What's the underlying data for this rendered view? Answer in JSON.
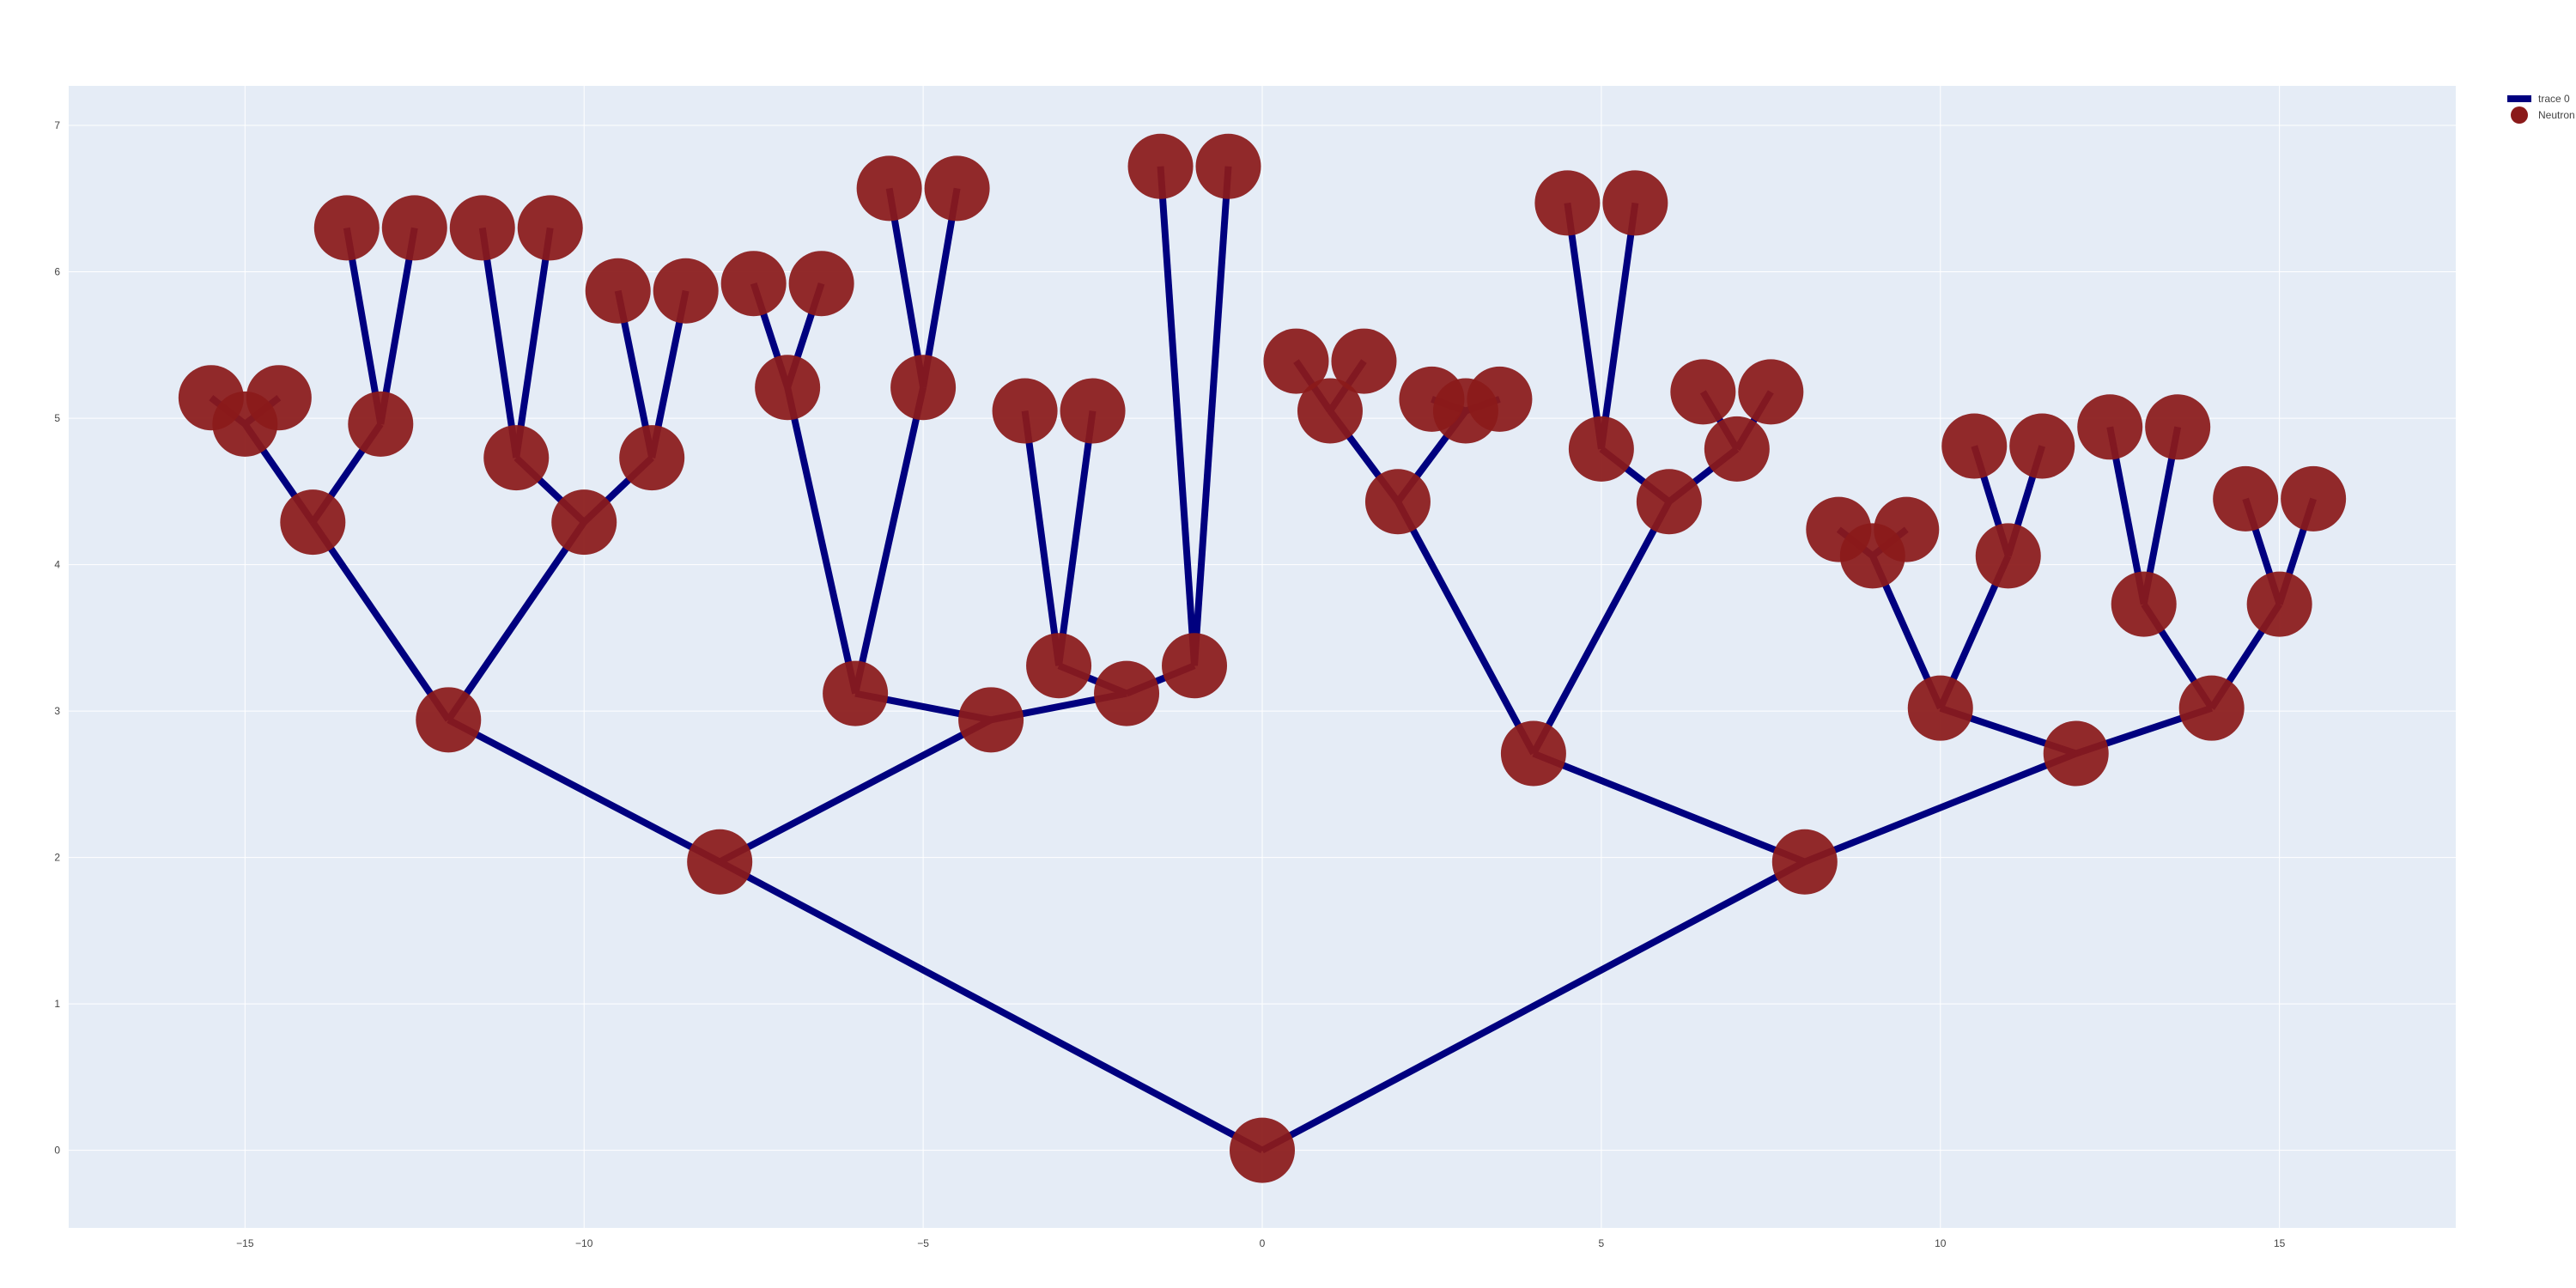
{
  "chart_data": {
    "type": "scatter",
    "title": "",
    "xlabel": "",
    "ylabel": "",
    "xlim": [
      -17.6,
      17.6
    ],
    "ylim": [
      -0.53,
      7.27
    ],
    "x_ticks": [
      -15,
      -10,
      -5,
      0,
      5,
      10,
      15
    ],
    "x_tick_labels": [
      "−15",
      "−10",
      "−5",
      "0",
      "5",
      "10",
      "15"
    ],
    "y_ticks": [
      0,
      1,
      2,
      3,
      4,
      5,
      6,
      7
    ],
    "y_tick_labels": [
      "0",
      "1",
      "2",
      "3",
      "4",
      "5",
      "6",
      "7"
    ],
    "grid": true,
    "legend_position": "top-right",
    "series": [
      {
        "name": "trace 0",
        "mode": "lines",
        "color": "#00007f",
        "segments": [
          [
            [
              0,
              0
            ],
            [
              -8,
              1.97
            ]
          ],
          [
            [
              0,
              0
            ],
            [
              8,
              1.97
            ]
          ],
          [
            [
              -8,
              1.97
            ],
            [
              -12,
              2.94
            ]
          ],
          [
            [
              -8,
              1.97
            ],
            [
              -4,
              2.94
            ]
          ],
          [
            [
              -12,
              2.94
            ],
            [
              -14,
              4.29
            ]
          ],
          [
            [
              -12,
              2.94
            ],
            [
              -10,
              4.29
            ]
          ],
          [
            [
              -14,
              4.29
            ],
            [
              -15,
              4.96
            ]
          ],
          [
            [
              -14,
              4.29
            ],
            [
              -13,
              4.96
            ]
          ],
          [
            [
              -15,
              4.96
            ],
            [
              -15.5,
              5.14
            ]
          ],
          [
            [
              -15,
              4.96
            ],
            [
              -14.5,
              5.14
            ]
          ],
          [
            [
              -13,
              4.96
            ],
            [
              -13.5,
              6.3
            ]
          ],
          [
            [
              -13,
              4.96
            ],
            [
              -12.5,
              6.3
            ]
          ],
          [
            [
              -10,
              4.29
            ],
            [
              -11,
              4.73
            ]
          ],
          [
            [
              -10,
              4.29
            ],
            [
              -9,
              4.73
            ]
          ],
          [
            [
              -11,
              4.73
            ],
            [
              -11.5,
              6.3
            ]
          ],
          [
            [
              -11,
              4.73
            ],
            [
              -10.5,
              6.3
            ]
          ],
          [
            [
              -9,
              4.73
            ],
            [
              -9.5,
              5.87
            ]
          ],
          [
            [
              -9,
              4.73
            ],
            [
              -8.5,
              5.87
            ]
          ],
          [
            [
              -4,
              2.94
            ],
            [
              -6,
              3.12
            ]
          ],
          [
            [
              -4,
              2.94
            ],
            [
              -2,
              3.12
            ]
          ],
          [
            [
              -6,
              3.12
            ],
            [
              -7,
              5.21
            ]
          ],
          [
            [
              -6,
              3.12
            ],
            [
              -5,
              5.21
            ]
          ],
          [
            [
              -7,
              5.21
            ],
            [
              -7.5,
              5.92
            ]
          ],
          [
            [
              -7,
              5.21
            ],
            [
              -6.5,
              5.92
            ]
          ],
          [
            [
              -5,
              5.21
            ],
            [
              -5.5,
              6.57
            ]
          ],
          [
            [
              -5,
              5.21
            ],
            [
              -4.5,
              6.57
            ]
          ],
          [
            [
              -2,
              3.12
            ],
            [
              -3,
              3.31
            ]
          ],
          [
            [
              -2,
              3.12
            ],
            [
              -1,
              3.31
            ]
          ],
          [
            [
              -3,
              3.31
            ],
            [
              -3.5,
              5.05
            ]
          ],
          [
            [
              -3,
              3.31
            ],
            [
              -2.5,
              5.05
            ]
          ],
          [
            [
              -1,
              3.31
            ],
            [
              -1.5,
              6.72
            ]
          ],
          [
            [
              -1,
              3.31
            ],
            [
              -0.5,
              6.72
            ]
          ],
          [
            [
              8,
              1.97
            ],
            [
              4,
              2.71
            ]
          ],
          [
            [
              8,
              1.97
            ],
            [
              12,
              2.71
            ]
          ],
          [
            [
              4,
              2.71
            ],
            [
              2,
              4.43
            ]
          ],
          [
            [
              4,
              2.71
            ],
            [
              6,
              4.43
            ]
          ],
          [
            [
              2,
              4.43
            ],
            [
              1,
              5.05
            ]
          ],
          [
            [
              2,
              4.43
            ],
            [
              3,
              5.05
            ]
          ],
          [
            [
              1,
              5.05
            ],
            [
              0.5,
              5.39
            ]
          ],
          [
            [
              1,
              5.05
            ],
            [
              1.5,
              5.39
            ]
          ],
          [
            [
              3,
              5.05
            ],
            [
              2.5,
              5.13
            ]
          ],
          [
            [
              3,
              5.05
            ],
            [
              3.5,
              5.13
            ]
          ],
          [
            [
              6,
              4.43
            ],
            [
              5,
              4.79
            ]
          ],
          [
            [
              6,
              4.43
            ],
            [
              7,
              4.79
            ]
          ],
          [
            [
              5,
              4.79
            ],
            [
              4.5,
              6.47
            ]
          ],
          [
            [
              5,
              4.79
            ],
            [
              5.5,
              6.47
            ]
          ],
          [
            [
              7,
              4.79
            ],
            [
              6.5,
              5.18
            ]
          ],
          [
            [
              7,
              4.79
            ],
            [
              7.5,
              5.18
            ]
          ],
          [
            [
              12,
              2.71
            ],
            [
              10,
              3.02
            ]
          ],
          [
            [
              12,
              2.71
            ],
            [
              14,
              3.02
            ]
          ],
          [
            [
              10,
              3.02
            ],
            [
              9,
              4.06
            ]
          ],
          [
            [
              10,
              3.02
            ],
            [
              11,
              4.06
            ]
          ],
          [
            [
              9,
              4.06
            ],
            [
              8.5,
              4.24
            ]
          ],
          [
            [
              9,
              4.06
            ],
            [
              9.5,
              4.24
            ]
          ],
          [
            [
              11,
              4.06
            ],
            [
              10.5,
              4.81
            ]
          ],
          [
            [
              11,
              4.06
            ],
            [
              11.5,
              4.81
            ]
          ],
          [
            [
              14,
              3.02
            ],
            [
              13,
              3.73
            ]
          ],
          [
            [
              14,
              3.02
            ],
            [
              15,
              3.73
            ]
          ],
          [
            [
              13,
              3.73
            ],
            [
              12.5,
              4.94
            ]
          ],
          [
            [
              13,
              3.73
            ],
            [
              13.5,
              4.94
            ]
          ],
          [
            [
              15,
              3.73
            ],
            [
              14.5,
              4.45
            ]
          ],
          [
            [
              15,
              3.73
            ],
            [
              15.5,
              4.45
            ]
          ]
        ]
      },
      {
        "name": "Neutron",
        "mode": "markers",
        "color": "#8b1a1a",
        "points": [
          [
            0,
            0
          ],
          [
            -8,
            1.97
          ],
          [
            8,
            1.97
          ],
          [
            -12,
            2.94
          ],
          [
            -4,
            2.94
          ],
          [
            4,
            2.71
          ],
          [
            12,
            2.71
          ],
          [
            -14,
            4.29
          ],
          [
            -10,
            4.29
          ],
          [
            -6,
            3.12
          ],
          [
            -2,
            3.12
          ],
          [
            2,
            4.43
          ],
          [
            6,
            4.43
          ],
          [
            10,
            3.02
          ],
          [
            14,
            3.02
          ],
          [
            -15,
            4.96
          ],
          [
            -13,
            4.96
          ],
          [
            -11,
            4.73
          ],
          [
            -9,
            4.73
          ],
          [
            -7,
            5.21
          ],
          [
            -5,
            5.21
          ],
          [
            -3,
            3.31
          ],
          [
            -1,
            3.31
          ],
          [
            1,
            5.05
          ],
          [
            3,
            5.05
          ],
          [
            5,
            4.79
          ],
          [
            7,
            4.79
          ],
          [
            9,
            4.06
          ],
          [
            11,
            4.06
          ],
          [
            13,
            3.73
          ],
          [
            15,
            3.73
          ],
          [
            -15.5,
            5.14
          ],
          [
            -14.5,
            5.14
          ],
          [
            -13.5,
            6.3
          ],
          [
            -12.5,
            6.3
          ],
          [
            -11.5,
            6.3
          ],
          [
            -10.5,
            6.3
          ],
          [
            -9.5,
            5.87
          ],
          [
            -8.5,
            5.87
          ],
          [
            -7.5,
            5.92
          ],
          [
            -6.5,
            5.92
          ],
          [
            -5.5,
            6.57
          ],
          [
            -4.5,
            6.57
          ],
          [
            -3.5,
            5.05
          ],
          [
            -2.5,
            5.05
          ],
          [
            -1.5,
            6.72
          ],
          [
            -0.5,
            6.72
          ],
          [
            0.5,
            5.39
          ],
          [
            1.5,
            5.39
          ],
          [
            2.5,
            5.13
          ],
          [
            3.5,
            5.13
          ],
          [
            4.5,
            6.47
          ],
          [
            5.5,
            6.47
          ],
          [
            6.5,
            5.18
          ],
          [
            7.5,
            5.18
          ],
          [
            8.5,
            4.24
          ],
          [
            9.5,
            4.24
          ],
          [
            10.5,
            4.81
          ],
          [
            11.5,
            4.81
          ],
          [
            12.5,
            4.94
          ],
          [
            13.5,
            4.94
          ],
          [
            14.5,
            4.45
          ],
          [
            15.5,
            4.45
          ]
        ]
      }
    ]
  },
  "legend": {
    "items": [
      {
        "label": "trace 0",
        "symbol": "line",
        "color": "#00007f"
      },
      {
        "label": "Neutron",
        "symbol": "circle",
        "color": "#8b1a1a"
      }
    ]
  },
  "colors": {
    "plot_background": "#e5ecf6",
    "grid": "#ffffff",
    "line": "#00007f",
    "marker": "#8b1a1a"
  }
}
